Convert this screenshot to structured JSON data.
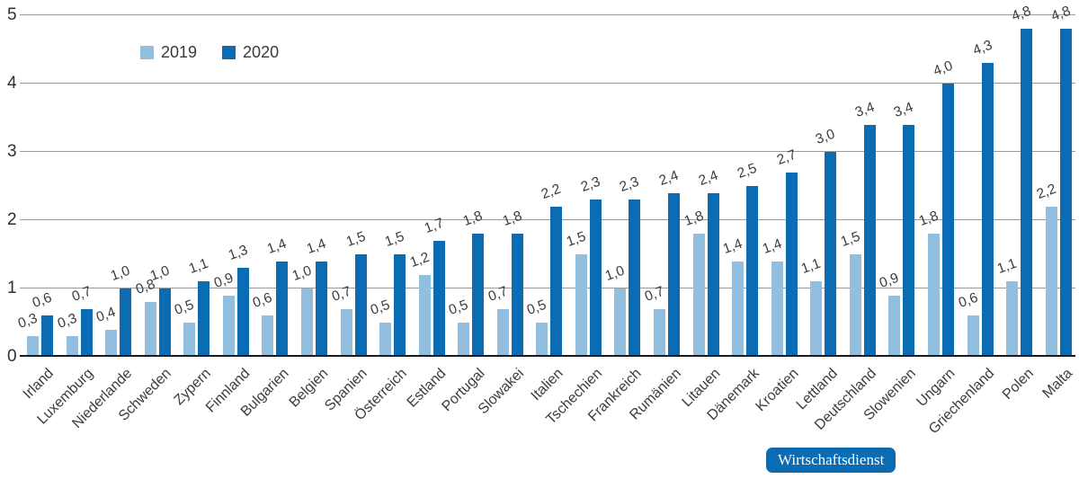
{
  "chart_data": {
    "type": "bar",
    "title": "",
    "xlabel": "",
    "ylabel": "",
    "ylim": [
      0,
      5
    ],
    "y_ticks": [
      0,
      1,
      2,
      3,
      4,
      5
    ],
    "grid": "horizontal",
    "legend_position": "top-left",
    "value_labels": "above-bars, decimal comma, rotated",
    "categories": [
      "Irland",
      "Luxemburg",
      "Niederlande",
      "Schweden",
      "Zypern",
      "Finnland",
      "Bulgarien",
      "Belgien",
      "Spanien",
      "Österreich",
      "Estland",
      "Portugal",
      "Slowakei",
      "Italien",
      "Tschechien",
      "Frankreich",
      "Rumänien",
      "Litauen",
      "Dänemark",
      "Kroatien",
      "Lettland",
      "Deutschland",
      "Slowenien",
      "Ungarn",
      "Griechenland",
      "Polen",
      "Malta"
    ],
    "series": [
      {
        "name": "2019",
        "color": "#92BEE0",
        "values": [
          0.3,
          0.3,
          0.4,
          0.8,
          0.5,
          0.9,
          0.6,
          1.0,
          0.7,
          0.5,
          1.2,
          0.5,
          0.7,
          0.5,
          1.5,
          1.0,
          0.7,
          1.8,
          1.4,
          1.4,
          1.1,
          1.5,
          0.9,
          1.8,
          0.6,
          1.1,
          2.2
        ]
      },
      {
        "name": "2020",
        "color": "#0B6BB3",
        "values": [
          0.6,
          0.7,
          1.0,
          1.0,
          1.1,
          1.3,
          1.4,
          1.4,
          1.5,
          1.5,
          1.7,
          1.8,
          1.8,
          2.2,
          2.3,
          2.3,
          2.4,
          2.4,
          2.5,
          2.7,
          3.0,
          3.4,
          3.4,
          4.0,
          4.3,
          4.8,
          4.8
        ]
      }
    ]
  },
  "source": {
    "label": "Wirtschaftsdienst",
    "bg_color": "#0B6BB3",
    "text_color": "#ffffff"
  },
  "colors": {
    "gridline": "#9A9A9A",
    "baseline": "#1A1A1A",
    "text": "#3C3C3B"
  }
}
